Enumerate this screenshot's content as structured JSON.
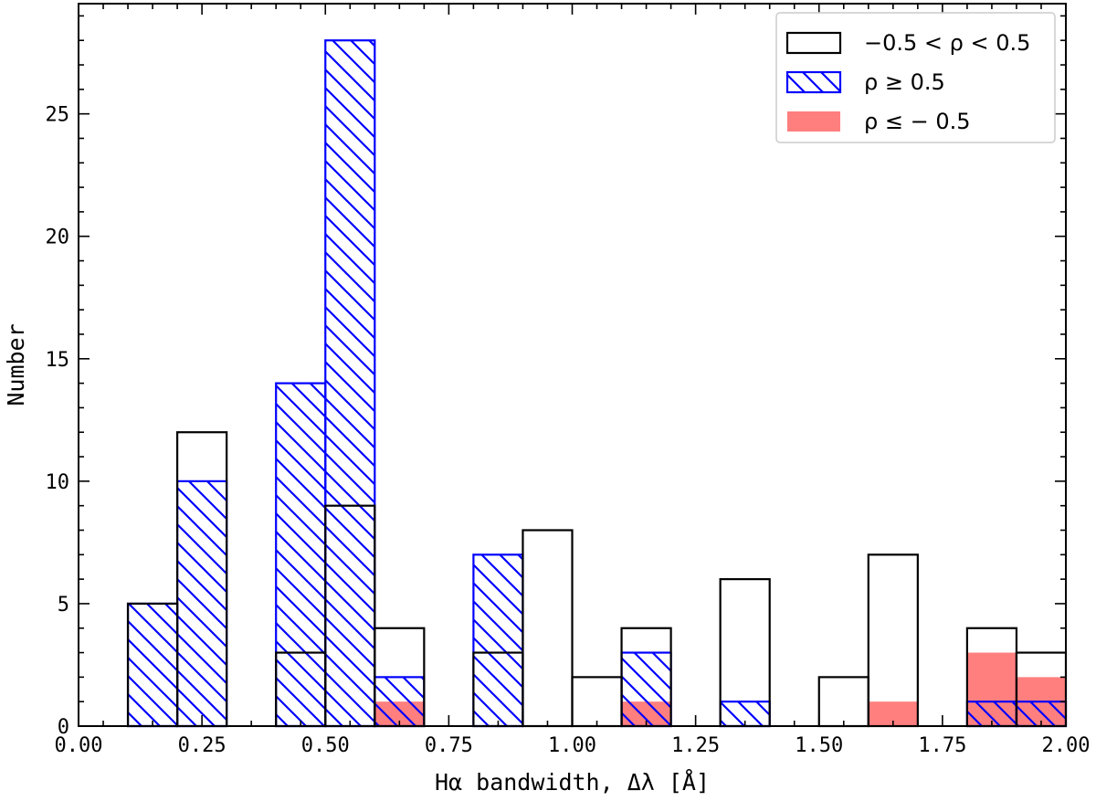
{
  "chart_data": {
    "type": "bar",
    "xlabel": "Hα bandwidth, Δλ [Å]",
    "ylabel": "Number",
    "xlim": [
      0.0,
      2.0
    ],
    "ylim": [
      0,
      29.5
    ],
    "x_ticks": [
      "0.00",
      "0.25",
      "0.50",
      "0.75",
      "1.00",
      "1.25",
      "1.50",
      "1.75",
      "2.00"
    ],
    "y_ticks": [
      "0",
      "5",
      "10",
      "15",
      "20",
      "25"
    ],
    "bin_edges": [
      0.0,
      0.1,
      0.2,
      0.3,
      0.4,
      0.5,
      0.6,
      0.7,
      0.8,
      0.9,
      1.0,
      1.1,
      1.2,
      1.3,
      1.4,
      1.5,
      1.6,
      1.7,
      1.8,
      1.9,
      2.0
    ],
    "legend_position": "top-right",
    "series": [
      {
        "name": "−0.5 < ρ < 0.5",
        "style": "outline",
        "color": "#000000",
        "values": [
          0,
          5,
          12,
          0,
          3,
          9,
          4,
          0,
          3,
          8,
          2,
          4,
          0,
          6,
          0,
          2,
          7,
          0,
          4,
          3
        ]
      },
      {
        "name": "ρ ≥ 0.5",
        "style": "hatched",
        "color": "#0000ff",
        "values": [
          0,
          5,
          10,
          0,
          14,
          28,
          2,
          0,
          7,
          0,
          0,
          3,
          0,
          1,
          0,
          0,
          0,
          0,
          1,
          1
        ]
      },
      {
        "name": "ρ ≤ − 0.5",
        "style": "filled",
        "color": "#ff7f7f",
        "values": [
          0,
          0,
          0,
          0,
          0,
          0,
          1,
          0,
          0,
          0,
          0,
          1,
          0,
          0,
          0,
          0,
          1,
          0,
          3,
          2
        ]
      }
    ]
  }
}
